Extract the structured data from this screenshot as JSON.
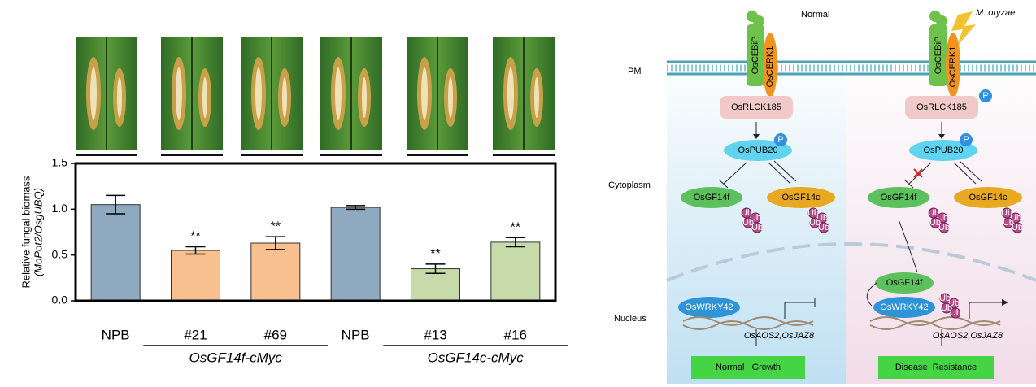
{
  "chart_data": {
    "type": "bar",
    "ylabel": [
      "Relative fungal biomass",
      "(MoPot2/OsgUBQ)"
    ],
    "categories": [
      "NPB",
      "#21",
      "#69",
      "NPB",
      "#13",
      "#16"
    ],
    "values": [
      1.05,
      0.55,
      0.63,
      1.02,
      0.35,
      0.64
    ],
    "errors": [
      0.1,
      0.04,
      0.07,
      0.02,
      0.05,
      0.05
    ],
    "colors": [
      "#8fa9c0",
      "#f9c08f",
      "#f9c08f",
      "#8fa9c0",
      "#c7dbaa",
      "#c7dbaa"
    ],
    "significance": [
      null,
      "**",
      "**",
      null,
      "**",
      "**"
    ],
    "groups": [
      "OsGF14f-cMyc",
      "OsGF14c-cMyc"
    ],
    "ylim": [
      0,
      1.5
    ],
    "yticks": [
      {
        "value": 0,
        "label": "0.0"
      },
      0.5,
      {
        "value": 1,
        "label": "1.0"
      },
      1.5
    ]
  },
  "diagram": {
    "panel_labels": {
      "pm": "PM",
      "cytoplasm": "Cytoplasm",
      "nucleus": "Nucleus"
    },
    "left": {
      "title": "Normal",
      "cebip": "OsCEBiP",
      "cerk1": "OsCERK1",
      "rlck": "OsRLCK185",
      "pub20": "OsPUB20",
      "p": "P",
      "gf14f": "OsGF14f",
      "gf14c": "OsGF14c",
      "wrky": "OsWRKY42",
      "genes": "OsAOS2,OsJAZ8",
      "outcome": "Normal   Growth"
    },
    "right": {
      "title": "M. oryzae",
      "cebip": "OsCEBiP",
      "cerk1": "OsCERK1",
      "rlck": "OsRLCK185",
      "pub20": "OsPUB20",
      "p": "P",
      "gf14f": "OsGF14f",
      "gf14c": "OsGF14c",
      "gf14f_nuc": "OsGF14f",
      "wrky": "OsWRKY42",
      "genes": "OsAOS2,OsJAZ8",
      "outcome": "Disease  Resistance"
    },
    "ub": "Ub"
  }
}
